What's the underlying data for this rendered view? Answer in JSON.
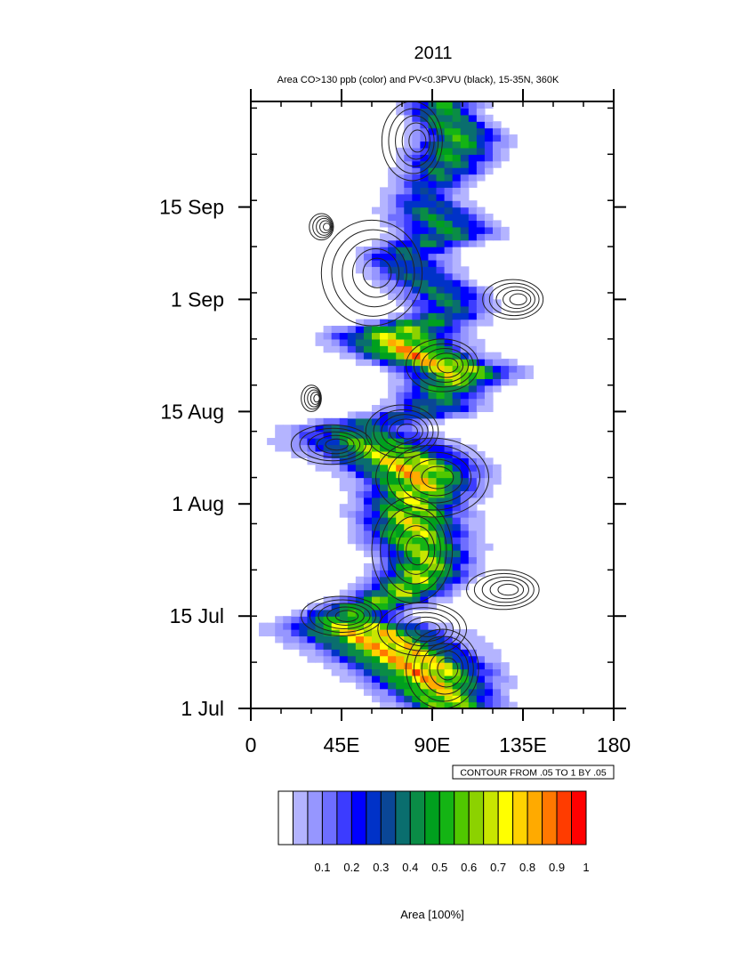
{
  "chart_data": {
    "type": "heatmap",
    "title": "2011",
    "subtitle": "Area CO>130 ppb (color) and PV<0.3PVU (black), 15-35N, 360K",
    "x_ticks": [
      "0",
      "45E",
      "90E",
      "135E",
      "180"
    ],
    "x_tick_values": [
      0,
      45,
      90,
      135,
      180
    ],
    "xlim": [
      0,
      180
    ],
    "y_ticks": [
      "1 Jul",
      "15 Jul",
      "1 Aug",
      "15 Aug",
      "1 Sep",
      "15 Sep"
    ],
    "y_tick_days": [
      0,
      14,
      31,
      45,
      62,
      76
    ],
    "ylim_days": [
      0,
      92
    ],
    "ylim": [
      "1 Jul",
      "1 Oct"
    ],
    "contour_info": "CONTOUR FROM .05 TO 1 BY .05",
    "colorbar": {
      "label": "Area [100%]",
      "tick_labels": [
        "0.1",
        "0.2",
        "0.3",
        "0.4",
        "0.5",
        "0.6",
        "0.7",
        "0.8",
        "0.9",
        "1"
      ],
      "tick_values": [
        0.1,
        0.2,
        0.3,
        0.4,
        0.5,
        0.6,
        0.7,
        0.8,
        0.9,
        1.0
      ],
      "levels": [
        0,
        0.05,
        0.1,
        0.15,
        0.2,
        0.25,
        0.3,
        0.35,
        0.4,
        0.45,
        0.5,
        0.55,
        0.6,
        0.65,
        0.7,
        0.75,
        0.8,
        0.85,
        0.9,
        0.95,
        1.0
      ],
      "colors": [
        "#ffffff",
        "#b4b4ff",
        "#9696ff",
        "#6e6eff",
        "#3c3cff",
        "#0000ff",
        "#0032c8",
        "#0a4696",
        "#0a6e6e",
        "#0a8c46",
        "#00a01e",
        "#14b414",
        "#50c800",
        "#8cd200",
        "#c8e600",
        "#ffff00",
        "#ffd200",
        "#ffaa00",
        "#ff7800",
        "#ff3c00",
        "#ff0000"
      ]
    },
    "co_area_series": {
      "description_units": "longitude center (deg E), width (deg), peak area fraction per day",
      "days": [
        0,
        3,
        6,
        9,
        12,
        14,
        17,
        20,
        23,
        26,
        29,
        31,
        34,
        37,
        40,
        43,
        45,
        48,
        51,
        54,
        57,
        60,
        63,
        66,
        69,
        72,
        75,
        78,
        81,
        84,
        87,
        90
      ],
      "center": [
        100,
        92,
        85,
        70,
        55,
        45,
        72,
        85,
        88,
        82,
        80,
        80,
        85,
        78,
        60,
        50,
        90,
        95,
        105,
        78,
        70,
        100,
        95,
        80,
        75,
        100,
        90,
        85,
        95,
        100,
        105,
        95
      ],
      "width": [
        45,
        55,
        65,
        70,
        75,
        50,
        45,
        45,
        45,
        50,
        50,
        50,
        55,
        65,
        75,
        60,
        50,
        40,
        55,
        55,
        60,
        40,
        45,
        45,
        45,
        50,
        45,
        35,
        40,
        45,
        40,
        35
      ],
      "peak": [
        0.8,
        0.9,
        1.0,
        1.0,
        0.95,
        0.6,
        0.75,
        0.8,
        0.75,
        0.8,
        0.85,
        0.8,
        0.9,
        0.95,
        0.7,
        0.45,
        0.45,
        0.6,
        0.9,
        1.0,
        0.8,
        0.45,
        0.5,
        0.45,
        0.45,
        0.55,
        0.55,
        0.35,
        0.5,
        0.6,
        0.65,
        0.6
      ]
    },
    "pv_contours": {
      "description_units": "regions (longitude deg E, day index) with PV<0.3PVU area contours",
      "regions": [
        {
          "lon": 95,
          "day": 6,
          "rx": 18,
          "ry": 6
        },
        {
          "lon": 85,
          "day": 12,
          "rx": 22,
          "ry": 4
        },
        {
          "lon": 45,
          "day": 14,
          "rx": 20,
          "ry": 3
        },
        {
          "lon": 125,
          "day": 18,
          "rx": 18,
          "ry": 3
        },
        {
          "lon": 80,
          "day": 24,
          "rx": 20,
          "ry": 8
        },
        {
          "lon": 90,
          "day": 35,
          "rx": 28,
          "ry": 6
        },
        {
          "lon": 40,
          "day": 40,
          "rx": 20,
          "ry": 3
        },
        {
          "lon": 75,
          "day": 42,
          "rx": 18,
          "ry": 4
        },
        {
          "lon": 30,
          "day": 47,
          "rx": 5,
          "ry": 2
        },
        {
          "lon": 95,
          "day": 52,
          "rx": 18,
          "ry": 4
        },
        {
          "lon": 130,
          "day": 62,
          "rx": 15,
          "ry": 3
        },
        {
          "lon": 60,
          "day": 66,
          "rx": 25,
          "ry": 8
        },
        {
          "lon": 35,
          "day": 73,
          "rx": 6,
          "ry": 2
        },
        {
          "lon": 80,
          "day": 86,
          "rx": 15,
          "ry": 6
        }
      ]
    }
  }
}
